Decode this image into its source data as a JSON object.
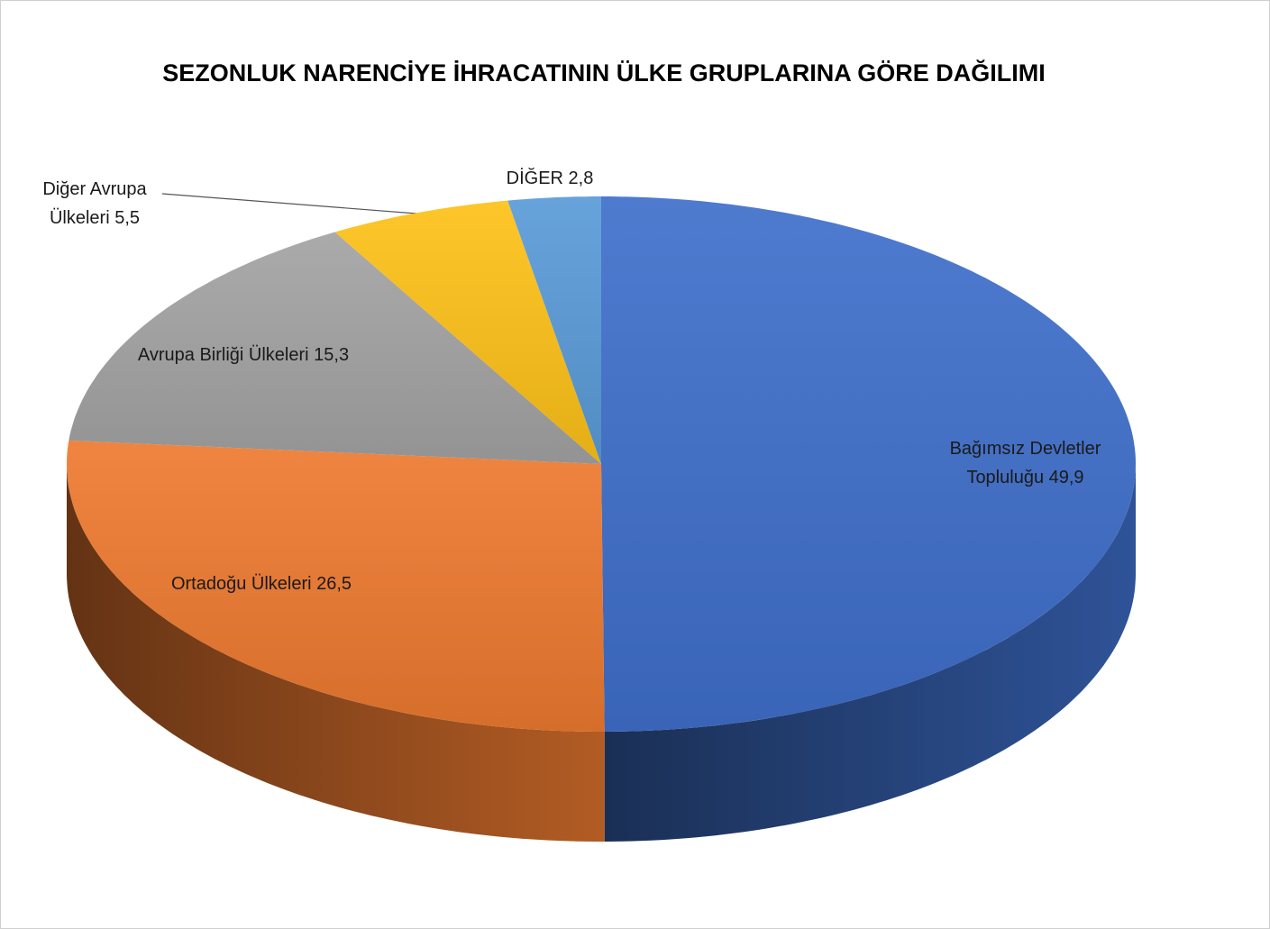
{
  "chart_data": {
    "type": "pie3d",
    "title": "SEZONLUK NARENCİYE İHRACATININ ÜLKE GRUPLARINA GÖRE DAĞILIMI",
    "categories": [
      "Bağımsız Devletler Topluluğu",
      "Ortadoğu Ülkeleri",
      "Avrupa Birliği Ülkeleri",
      "Diğer Avrupa Ülkeleri",
      "DİĞER"
    ],
    "values": [
      49.9,
      26.5,
      15.3,
      5.5,
      2.8
    ],
    "value_labels": [
      "49,9",
      "26,5",
      "15,3",
      "5,5",
      "2,8"
    ],
    "colors": [
      "#3f6fcb",
      "#ee7a30",
      "#a3a3a3",
      "#fdc118",
      "#5a9bd8"
    ]
  }
}
